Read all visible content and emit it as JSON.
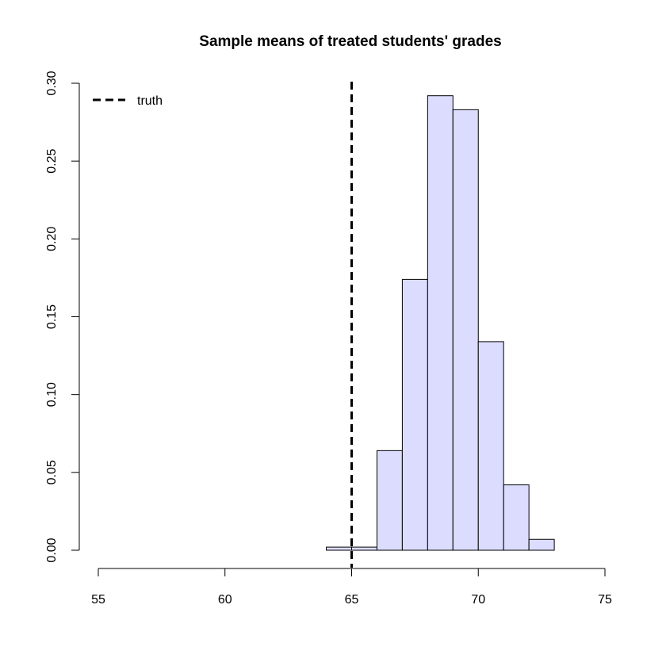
{
  "chart_data": {
    "type": "bar",
    "title": "Sample means of treated students' grades",
    "xlabel": "",
    "ylabel": "",
    "xlim": [
      55,
      75
    ],
    "ylim": [
      0,
      0.3
    ],
    "x_ticks": [
      "55",
      "60",
      "65",
      "70",
      "75"
    ],
    "y_ticks": [
      "0.00",
      "0.05",
      "0.10",
      "0.15",
      "0.20",
      "0.25",
      "0.30"
    ],
    "bins": [
      {
        "from": 64,
        "to": 65,
        "value": 0.002
      },
      {
        "from": 65,
        "to": 66,
        "value": 0.002
      },
      {
        "from": 66,
        "to": 67,
        "value": 0.064
      },
      {
        "from": 67,
        "to": 68,
        "value": 0.174
      },
      {
        "from": 68,
        "to": 69,
        "value": 0.292
      },
      {
        "from": 69,
        "to": 70,
        "value": 0.283
      },
      {
        "from": 70,
        "to": 71,
        "value": 0.134
      },
      {
        "from": 71,
        "to": 72,
        "value": 0.042
      },
      {
        "from": 72,
        "to": 73,
        "value": 0.007
      }
    ],
    "reference_line": {
      "x": 65,
      "style": "dashed",
      "label": "truth"
    },
    "legend": {
      "position": "top-left",
      "entries": [
        {
          "label": "truth",
          "style": "dashed"
        }
      ]
    },
    "grid": false,
    "colors": {
      "bar_fill": "#dcdcff",
      "bar_stroke": "#000000",
      "line": "#000000"
    }
  }
}
